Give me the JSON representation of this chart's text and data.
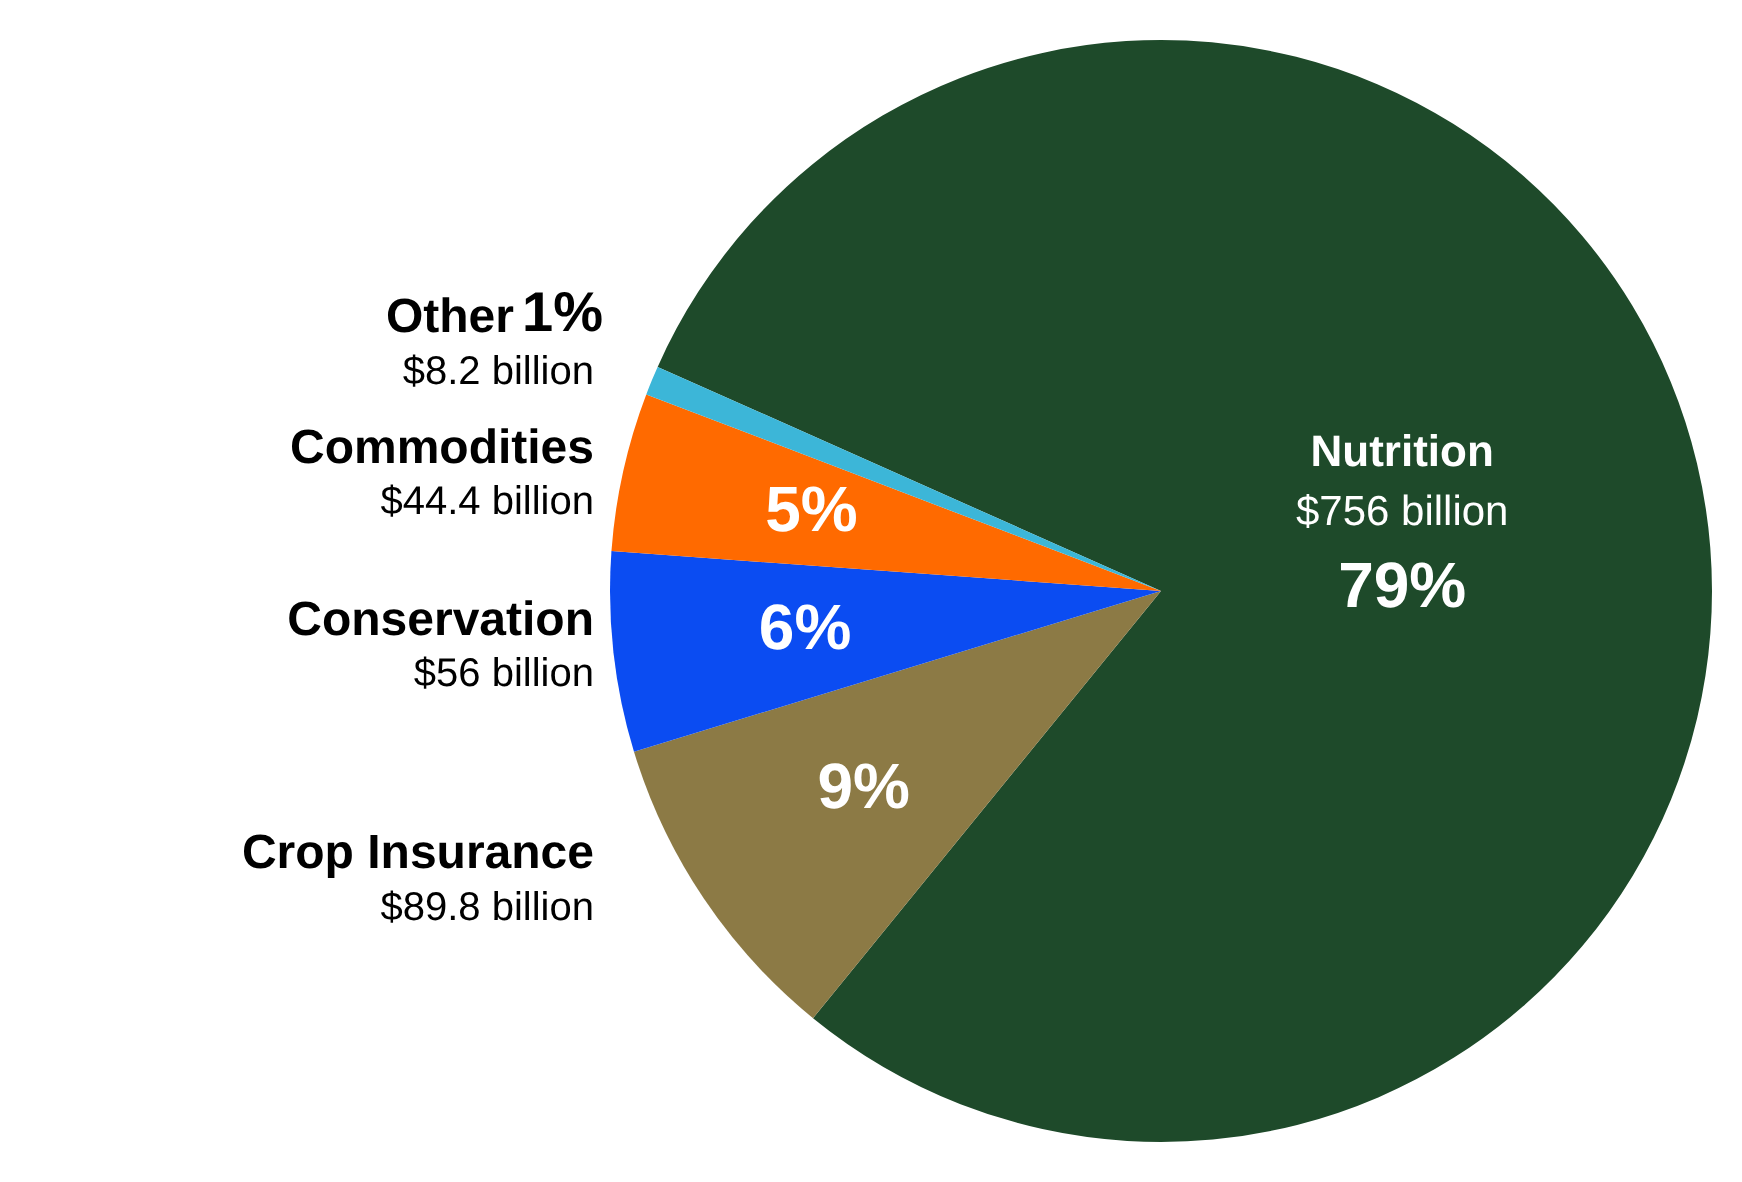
{
  "chart_data": {
    "type": "pie",
    "categories": [
      "Nutrition",
      "Crop Insurance",
      "Conservation",
      "Commodities",
      "Other"
    ],
    "values": [
      756,
      89.8,
      56,
      44.4,
      8.2
    ],
    "colors": [
      "#1e4a2a",
      "#8c7a45",
      "#0b4cf2",
      "#ff6a00",
      "#3cb6d8"
    ],
    "value_labels": [
      "$756 billion",
      "$89.8 billion",
      "$56 billion",
      "$44.4 billion",
      "$8.2 billion"
    ],
    "annotations": [
      {
        "text": "79%",
        "x": "Nutrition"
      },
      {
        "text": "9%",
        "x": "Crop Insurance"
      },
      {
        "text": "6%",
        "x": "Conservation"
      },
      {
        "text": "5%",
        "x": "Commodities"
      },
      {
        "text": "1%",
        "x": "Other"
      }
    ],
    "legend": false
  }
}
